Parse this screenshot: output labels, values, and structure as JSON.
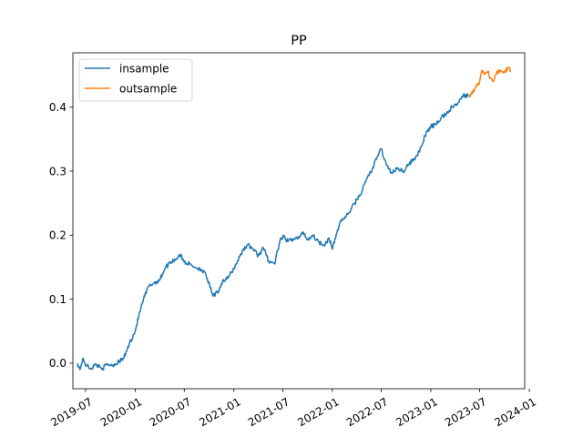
{
  "chart_data": {
    "type": "line",
    "title": "PP",
    "xlabel": "",
    "ylabel": "",
    "xlim": [
      "2019-05-15",
      "2023-12-15"
    ],
    "ylim": [
      -0.04,
      0.485
    ],
    "x_ticks": [
      "2019-07",
      "2020-01",
      "2020-07",
      "2021-01",
      "2021-07",
      "2022-01",
      "2022-07",
      "2023-01",
      "2023-07",
      "2024-01"
    ],
    "y_ticks": [
      "0.0",
      "0.1",
      "0.2",
      "0.3",
      "0.4"
    ],
    "legend": {
      "position": "top-left"
    },
    "grid": false,
    "series": [
      {
        "name": "insample",
        "color": "#1f77b4",
        "points": [
          [
            "2019-06-01",
            0.0
          ],
          [
            "2019-06-10",
            -0.01
          ],
          [
            "2019-06-20",
            0.006
          ],
          [
            "2019-07-05",
            -0.004
          ],
          [
            "2019-07-20",
            -0.008
          ],
          [
            "2019-08-10",
            -0.002
          ],
          [
            "2019-09-01",
            -0.008
          ],
          [
            "2019-09-20",
            -0.002
          ],
          [
            "2019-10-10",
            -0.003
          ],
          [
            "2019-11-01",
            0.002
          ],
          [
            "2019-11-20",
            0.008
          ],
          [
            "2019-12-10",
            0.03
          ],
          [
            "2020-01-01",
            0.05
          ],
          [
            "2020-01-15",
            0.075
          ],
          [
            "2020-02-01",
            0.1
          ],
          [
            "2020-02-20",
            0.12
          ],
          [
            "2020-03-10",
            0.125
          ],
          [
            "2020-04-01",
            0.13
          ],
          [
            "2020-04-20",
            0.148
          ],
          [
            "2020-05-10",
            0.158
          ],
          [
            "2020-06-01",
            0.163
          ],
          [
            "2020-06-15",
            0.17
          ],
          [
            "2020-07-01",
            0.158
          ],
          [
            "2020-07-20",
            0.155
          ],
          [
            "2020-08-10",
            0.15
          ],
          [
            "2020-09-01",
            0.147
          ],
          [
            "2020-09-20",
            0.137
          ],
          [
            "2020-10-05",
            0.118
          ],
          [
            "2020-10-15",
            0.105
          ],
          [
            "2020-11-01",
            0.11
          ],
          [
            "2020-11-20",
            0.128
          ],
          [
            "2020-12-10",
            0.133
          ],
          [
            "2021-01-01",
            0.148
          ],
          [
            "2021-01-15",
            0.16
          ],
          [
            "2021-02-01",
            0.175
          ],
          [
            "2021-02-20",
            0.185
          ],
          [
            "2021-03-10",
            0.18
          ],
          [
            "2021-04-01",
            0.168
          ],
          [
            "2021-04-20",
            0.18
          ],
          [
            "2021-05-10",
            0.16
          ],
          [
            "2021-06-01",
            0.155
          ],
          [
            "2021-06-20",
            0.19
          ],
          [
            "2021-07-05",
            0.198
          ],
          [
            "2021-07-20",
            0.19
          ],
          [
            "2021-08-10",
            0.195
          ],
          [
            "2021-09-01",
            0.196
          ],
          [
            "2021-09-15",
            0.205
          ],
          [
            "2021-10-01",
            0.193
          ],
          [
            "2021-10-20",
            0.2
          ],
          [
            "2021-11-10",
            0.19
          ],
          [
            "2021-12-01",
            0.185
          ],
          [
            "2021-12-20",
            0.195
          ],
          [
            "2022-01-01",
            0.178
          ],
          [
            "2022-01-15",
            0.2
          ],
          [
            "2022-02-01",
            0.223
          ],
          [
            "2022-02-20",
            0.228
          ],
          [
            "2022-03-10",
            0.24
          ],
          [
            "2022-04-01",
            0.255
          ],
          [
            "2022-04-20",
            0.268
          ],
          [
            "2022-05-10",
            0.29
          ],
          [
            "2022-06-01",
            0.305
          ],
          [
            "2022-06-15",
            0.322
          ],
          [
            "2022-07-01",
            0.335
          ],
          [
            "2022-07-20",
            0.31
          ],
          [
            "2022-08-10",
            0.297
          ],
          [
            "2022-09-01",
            0.305
          ],
          [
            "2022-09-20",
            0.3
          ],
          [
            "2022-10-10",
            0.31
          ],
          [
            "2022-11-01",
            0.32
          ],
          [
            "2022-11-20",
            0.33
          ],
          [
            "2022-12-10",
            0.355
          ],
          [
            "2023-01-01",
            0.37
          ],
          [
            "2023-01-20",
            0.372
          ],
          [
            "2023-02-10",
            0.385
          ],
          [
            "2023-03-01",
            0.39
          ],
          [
            "2023-03-20",
            0.4
          ],
          [
            "2023-04-10",
            0.405
          ],
          [
            "2023-05-01",
            0.418
          ],
          [
            "2023-05-20",
            0.418
          ]
        ]
      },
      {
        "name": "outsample",
        "color": "#ff7f0e",
        "points": [
          [
            "2023-05-20",
            0.418
          ],
          [
            "2023-06-01",
            0.42
          ],
          [
            "2023-06-15",
            0.43
          ],
          [
            "2023-07-01",
            0.44
          ],
          [
            "2023-07-10",
            0.458
          ],
          [
            "2023-07-20",
            0.452
          ],
          [
            "2023-08-01",
            0.455
          ],
          [
            "2023-08-10",
            0.445
          ],
          [
            "2023-08-20",
            0.44
          ],
          [
            "2023-09-01",
            0.452
          ],
          [
            "2023-09-15",
            0.458
          ],
          [
            "2023-10-01",
            0.455
          ],
          [
            "2023-10-15",
            0.462
          ],
          [
            "2023-10-25",
            0.457
          ]
        ]
      }
    ]
  }
}
